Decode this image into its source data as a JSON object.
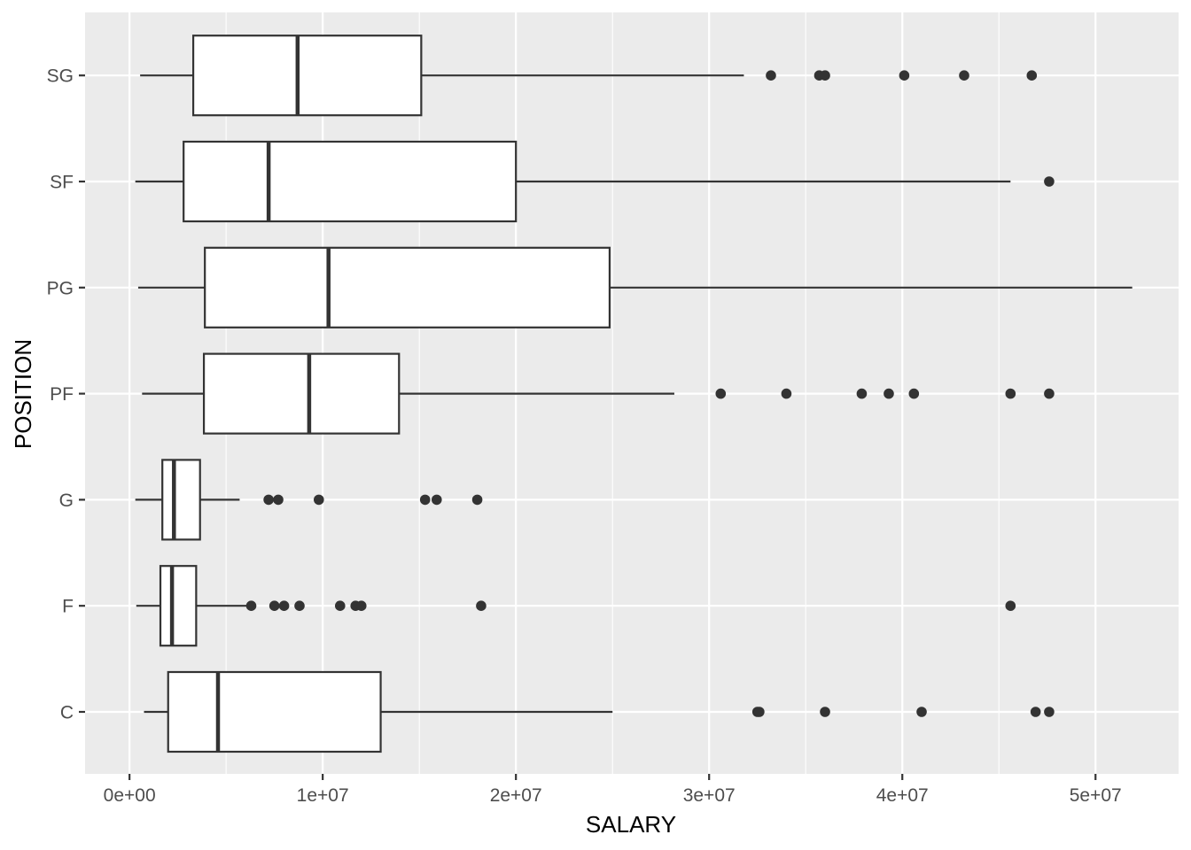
{
  "chart_data": {
    "type": "boxplot",
    "orientation": "horizontal",
    "xlabel": "SALARY",
    "ylabel": "POSITION",
    "xlim": [
      -2300000,
      54300000
    ],
    "x_ticks": [
      0,
      10000000,
      20000000,
      30000000,
      40000000,
      50000000
    ],
    "x_tick_labels": [
      "0e+00",
      "1e+07",
      "2e+07",
      "3e+07",
      "4e+07",
      "5e+07"
    ],
    "grid": true,
    "categories": [
      "C",
      "F",
      "G",
      "PF",
      "PG",
      "SF",
      "SG"
    ],
    "boxes": [
      {
        "category": "C",
        "whisker_low": 750000,
        "q1": 2000000,
        "median": 4580000,
        "q3": 13000000,
        "whisker_high": 25000000,
        "outliers": [
          32500000,
          32600000,
          36000000,
          41000000,
          46900000,
          47600000
        ]
      },
      {
        "category": "F",
        "whisker_low": 350000,
        "q1": 1600000,
        "median": 2200000,
        "q3": 3450000,
        "whisker_high": 6300000,
        "outliers": [
          6300000,
          7500000,
          8000000,
          8800000,
          10900000,
          11700000,
          12000000,
          18200000,
          45600000
        ]
      },
      {
        "category": "G",
        "whisker_low": 300000,
        "q1": 1700000,
        "median": 2300000,
        "q3": 3650000,
        "whisker_high": 5700000,
        "outliers": [
          7200000,
          7700000,
          9800000,
          15300000,
          15900000,
          18000000
        ]
      },
      {
        "category": "PF",
        "whisker_low": 650000,
        "q1": 3850000,
        "median": 9300000,
        "q3": 13950000,
        "whisker_high": 28200000,
        "outliers": [
          30600000,
          34000000,
          37900000,
          39300000,
          40600000,
          45600000,
          47600000
        ]
      },
      {
        "category": "PG",
        "whisker_low": 450000,
        "q1": 3900000,
        "median": 10300000,
        "q3": 24850000,
        "whisker_high": 51900000,
        "outliers": []
      },
      {
        "category": "SF",
        "whisker_low": 300000,
        "q1": 2800000,
        "median": 7200000,
        "q3": 20000000,
        "whisker_high": 45600000,
        "outliers": [
          47600000
        ]
      },
      {
        "category": "SG",
        "whisker_low": 550000,
        "q1": 3300000,
        "median": 8700000,
        "q3": 15100000,
        "whisker_high": 31800000,
        "outliers": [
          33200000,
          35700000,
          36000000,
          40100000,
          43200000,
          46700000
        ]
      }
    ],
    "colors": {
      "panel_background": "#ebebeb",
      "grid_major": "#ffffff",
      "box_fill": "#ffffff",
      "box_stroke": "#333333",
      "outlier": "#333333",
      "tick_text": "#4d4d4d",
      "title_text": "#000000"
    }
  }
}
